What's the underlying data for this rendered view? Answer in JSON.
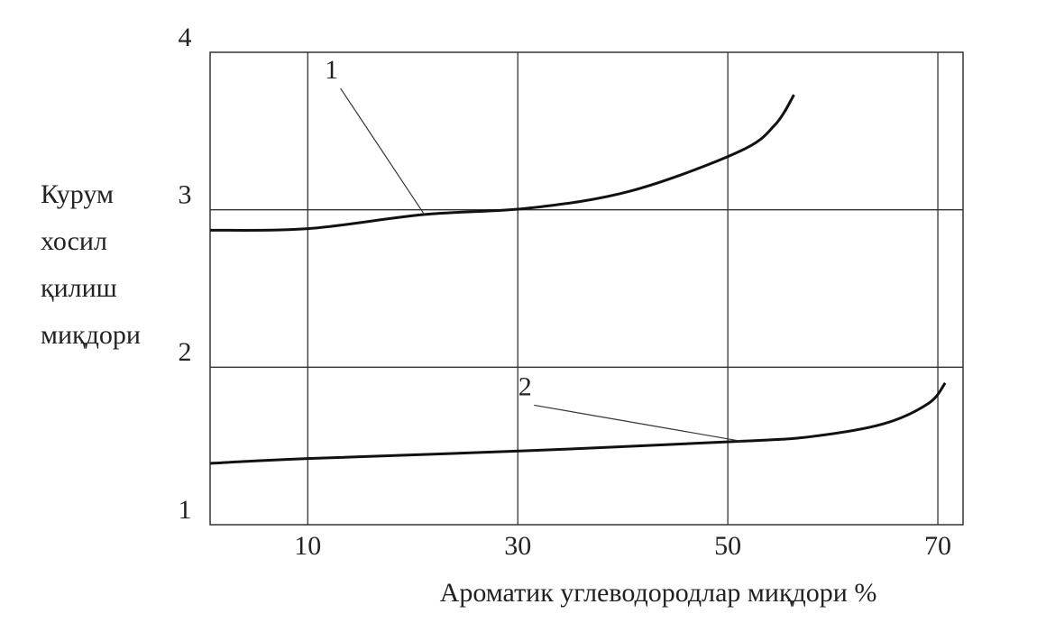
{
  "chart_data": {
    "type": "line",
    "x_label": "Ароматик углеводородлар миқдори %",
    "y_label": [
      "Курум",
      "хосил",
      "қилиш",
      "миқдори"
    ],
    "xlim": [
      0.7,
      72.4
    ],
    "xticks": [
      10,
      30,
      50,
      70
    ],
    "ylim": [
      1,
      4
    ],
    "yticks": [
      1,
      2,
      3,
      4
    ],
    "grid": true,
    "series": [
      {
        "name": "1",
        "color": "#111111",
        "x": [
          0.73,
          10,
          21.1,
          31.0,
          40.8,
          51.1,
          54.5,
          56.3
        ],
        "values": [
          2.87,
          2.88,
          2.97,
          3.01,
          3.12,
          3.37,
          3.54,
          3.73
        ]
      },
      {
        "name": "2",
        "color": "#111111",
        "x": [
          0.73,
          10,
          31,
          51.3,
          58,
          64.8,
          69.1,
          70.7
        ],
        "values": [
          1.39,
          1.42,
          1.47,
          1.53,
          1.56,
          1.64,
          1.77,
          1.9
        ]
      }
    ]
  }
}
